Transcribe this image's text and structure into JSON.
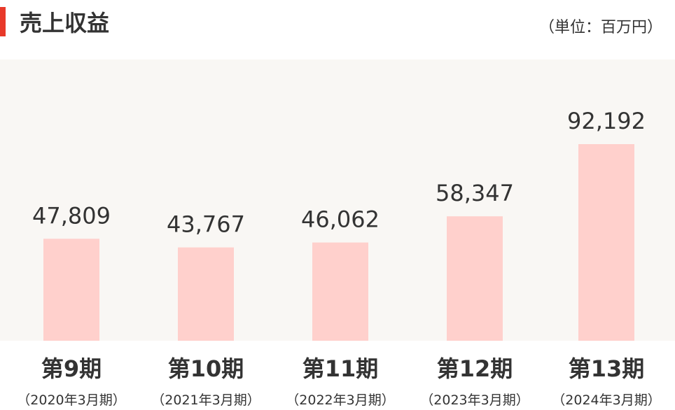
{
  "chart_data": {
    "type": "bar",
    "title": "売上収益",
    "unit_label": "（単位：百万円）",
    "categories": [
      "第9期",
      "第10期",
      "第11期",
      "第12期",
      "第13期"
    ],
    "periods": [
      "（2020年3月期）",
      "（2021年3月期）",
      "（2022年3月期）",
      "（2023年3月期）",
      "（2024年3月期）"
    ],
    "values": [
      47809,
      43767,
      46062,
      58347,
      92192
    ],
    "value_labels": [
      "47,809",
      "43,767",
      "46,062",
      "58,347",
      "92,192"
    ],
    "color": "#ffd0cc",
    "accent_color": "#e8392a",
    "background": "#f9f7f4"
  }
}
